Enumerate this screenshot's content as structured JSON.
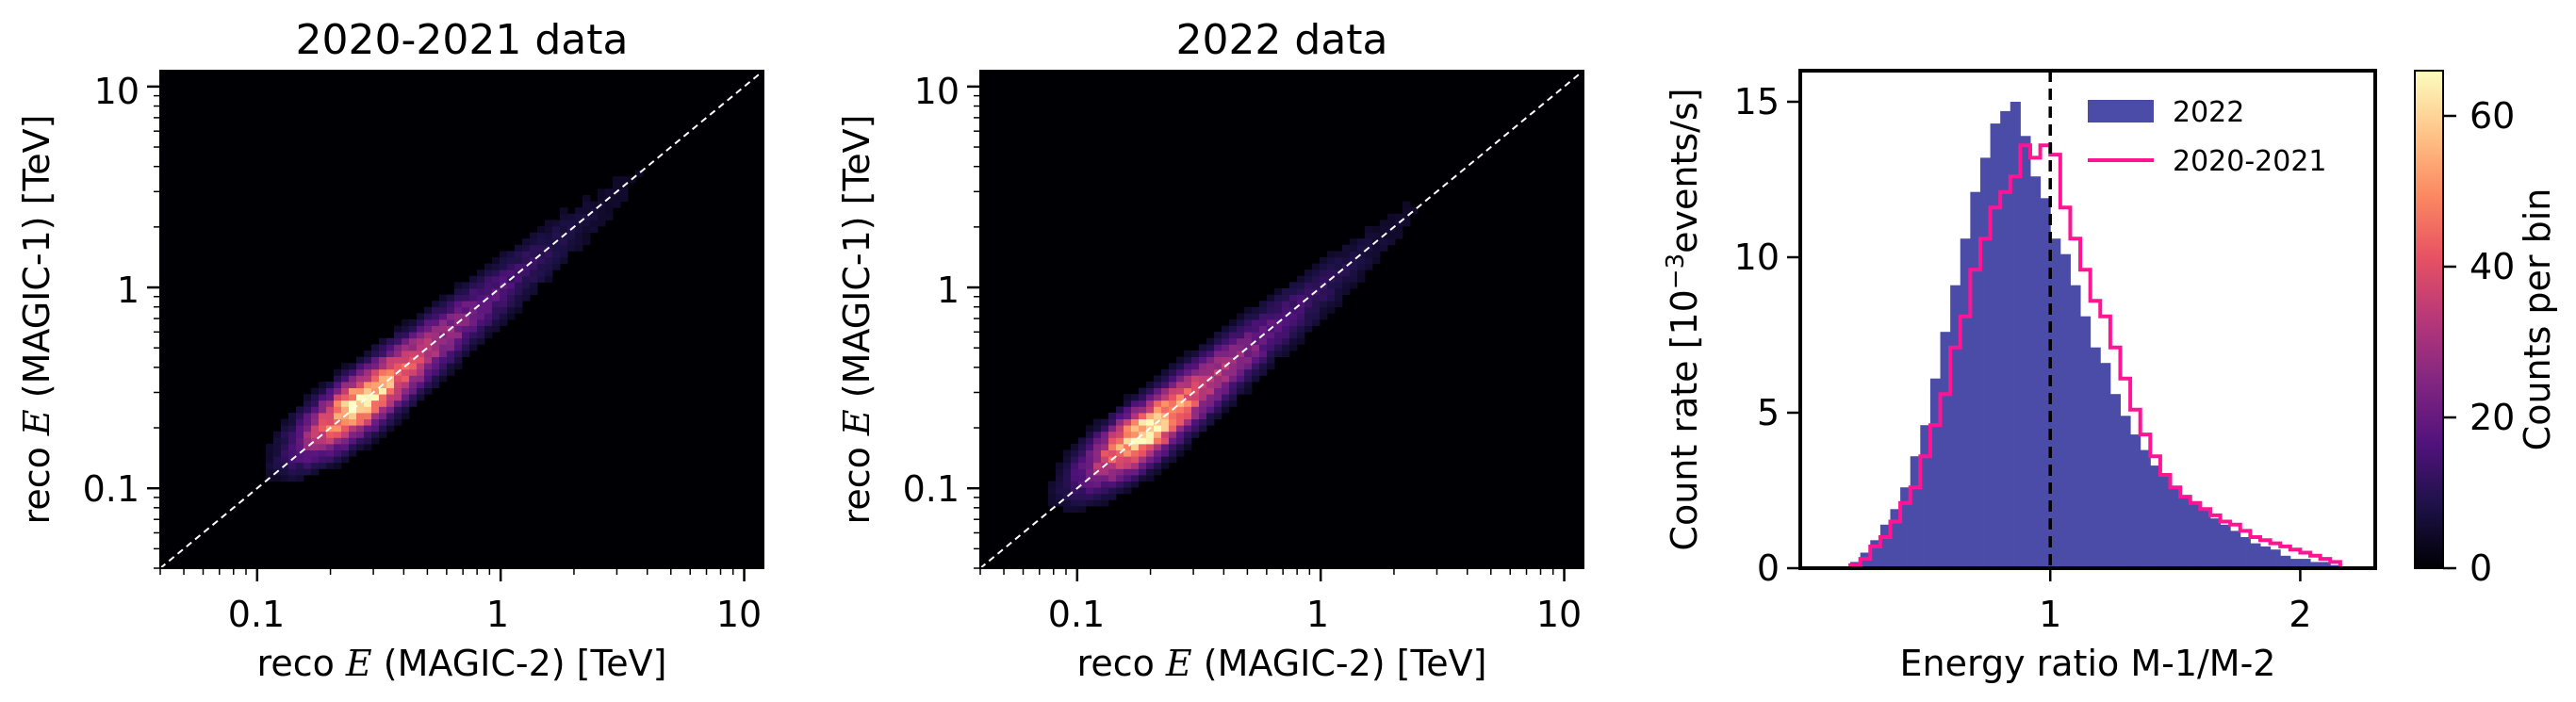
{
  "colors": {
    "hist2022": "#4b4ba8",
    "hist2020": "#ff1493",
    "diagonal": "#ffffff",
    "vline": "#000000",
    "colormap": [
      "#000004",
      "#1d1147",
      "#51127c",
      "#822681",
      "#b73779",
      "#e75263",
      "#fc8961",
      "#fec488",
      "#fcfdbf"
    ]
  },
  "scatter_panels": [
    {
      "title": "2020-2021 data",
      "xlabel_pre": "reco ",
      "xlabel_var": "E",
      "xlabel_post": " (MAGIC-2) [TeV]",
      "ylabel_pre": "reco ",
      "ylabel_var": "E",
      "ylabel_post": " (MAGIC-1) [TeV]",
      "xticks": [
        "0.1",
        "1",
        "10"
      ],
      "yticks": [
        "0.1",
        "1",
        "10"
      ]
    },
    {
      "title": "2022 data",
      "xlabel_pre": "reco ",
      "xlabel_var": "E",
      "xlabel_post": " (MAGIC-2) [TeV]",
      "ylabel_pre": "reco ",
      "ylabel_var": "E",
      "ylabel_post": " (MAGIC-1) [TeV]",
      "xticks": [
        "0.1",
        "1",
        "10"
      ],
      "yticks": [
        "0.1",
        "1",
        "10"
      ]
    }
  ],
  "hist_panel": {
    "xlabel": "Energy ratio M-1/M-2",
    "ylabel_pre": "Count rate [10",
    "ylabel_exp": "−3",
    "ylabel_post": "events/s]",
    "xticks": [
      "1",
      "2"
    ],
    "yticks": [
      "0",
      "5",
      "10",
      "15"
    ],
    "legend": [
      "2022",
      "2020-2021"
    ]
  },
  "colorbar": {
    "label": "Counts per bin",
    "ticks": [
      "0",
      "20",
      "40",
      "60"
    ]
  },
  "chart_data": [
    {
      "type": "heatmap",
      "title": "2020-2021 data",
      "xlabel": "reco E (MAGIC-2) [TeV]",
      "ylabel": "reco E (MAGIC-1) [TeV]",
      "xscale": "log",
      "yscale": "log",
      "xlim": [
        0.04,
        12
      ],
      "ylim": [
        0.04,
        12
      ],
      "diagonal": "y = x",
      "peak_at_TeV": [
        0.28,
        0.28
      ],
      "peak_counts": 60
    },
    {
      "type": "heatmap",
      "title": "2022 data",
      "xlabel": "reco E (MAGIC-2) [TeV]",
      "ylabel": "reco E (MAGIC-1) [TeV]",
      "xscale": "log",
      "yscale": "log",
      "xlim": [
        0.04,
        12
      ],
      "ylim": [
        0.04,
        12
      ],
      "diagonal": "y = x",
      "peak_at_TeV": [
        0.2,
        0.18
      ],
      "peak_counts": 60
    },
    {
      "type": "bar",
      "xlabel": "Energy ratio M-1/M-2",
      "ylabel": "Count rate [10^-3 events/s]",
      "xlim": [
        0.0,
        2.3
      ],
      "ylim": [
        0,
        16
      ],
      "vline_x": 1.0,
      "legend_position": "top-right",
      "bin_width": 0.04,
      "series": [
        {
          "name": "2022",
          "style": "filled histogram",
          "x": [
            0.22,
            0.26,
            0.3,
            0.34,
            0.38,
            0.42,
            0.46,
            0.5,
            0.54,
            0.58,
            0.62,
            0.66,
            0.7,
            0.74,
            0.78,
            0.82,
            0.86,
            0.9,
            0.94,
            0.98,
            1.02,
            1.06,
            1.1,
            1.14,
            1.18,
            1.22,
            1.26,
            1.3,
            1.34,
            1.38,
            1.42,
            1.46,
            1.5,
            1.54,
            1.58,
            1.62,
            1.66,
            1.7,
            1.74,
            1.78,
            1.82,
            1.86,
            1.9,
            1.94,
            1.98,
            2.02,
            2.06,
            2.1,
            2.14
          ],
          "values": [
            0.2,
            0.5,
            0.9,
            1.4,
            1.9,
            2.6,
            3.6,
            4.6,
            6.1,
            7.6,
            9.1,
            10.6,
            12.1,
            13.2,
            14.3,
            14.7,
            15.0,
            13.9,
            12.6,
            11.9,
            10.6,
            10.1,
            9.1,
            8.1,
            7.1,
            6.6,
            5.6,
            4.9,
            4.3,
            3.8,
            3.3,
            3.0,
            2.6,
            2.3,
            2.1,
            1.9,
            1.6,
            1.4,
            1.2,
            1.0,
            0.8,
            0.7,
            0.6,
            0.4,
            0.3,
            0.3,
            0.2,
            0.2,
            0.1
          ]
        },
        {
          "name": "2020-2021",
          "style": "step histogram",
          "x": [
            0.22,
            0.26,
            0.3,
            0.34,
            0.38,
            0.42,
            0.46,
            0.5,
            0.54,
            0.58,
            0.62,
            0.66,
            0.7,
            0.74,
            0.78,
            0.82,
            0.86,
            0.9,
            0.94,
            0.98,
            1.02,
            1.06,
            1.1,
            1.14,
            1.18,
            1.22,
            1.26,
            1.3,
            1.34,
            1.38,
            1.42,
            1.46,
            1.5,
            1.54,
            1.58,
            1.62,
            1.66,
            1.7,
            1.74,
            1.78,
            1.82,
            1.86,
            1.9,
            1.94,
            1.98,
            2.02,
            2.06,
            2.1,
            2.14
          ],
          "values": [
            0.1,
            0.3,
            0.7,
            1.0,
            1.5,
            2.1,
            2.6,
            3.6,
            4.6,
            5.6,
            7.1,
            8.1,
            9.6,
            10.6,
            11.6,
            12.1,
            12.6,
            13.6,
            13.2,
            13.6,
            13.3,
            11.6,
            10.6,
            9.6,
            8.6,
            8.1,
            7.1,
            6.1,
            5.1,
            4.3,
            3.6,
            3.0,
            2.6,
            2.3,
            2.1,
            1.9,
            1.7,
            1.5,
            1.4,
            1.2,
            1.0,
            0.9,
            0.8,
            0.7,
            0.6,
            0.5,
            0.4,
            0.3,
            0.2
          ]
        }
      ]
    }
  ]
}
